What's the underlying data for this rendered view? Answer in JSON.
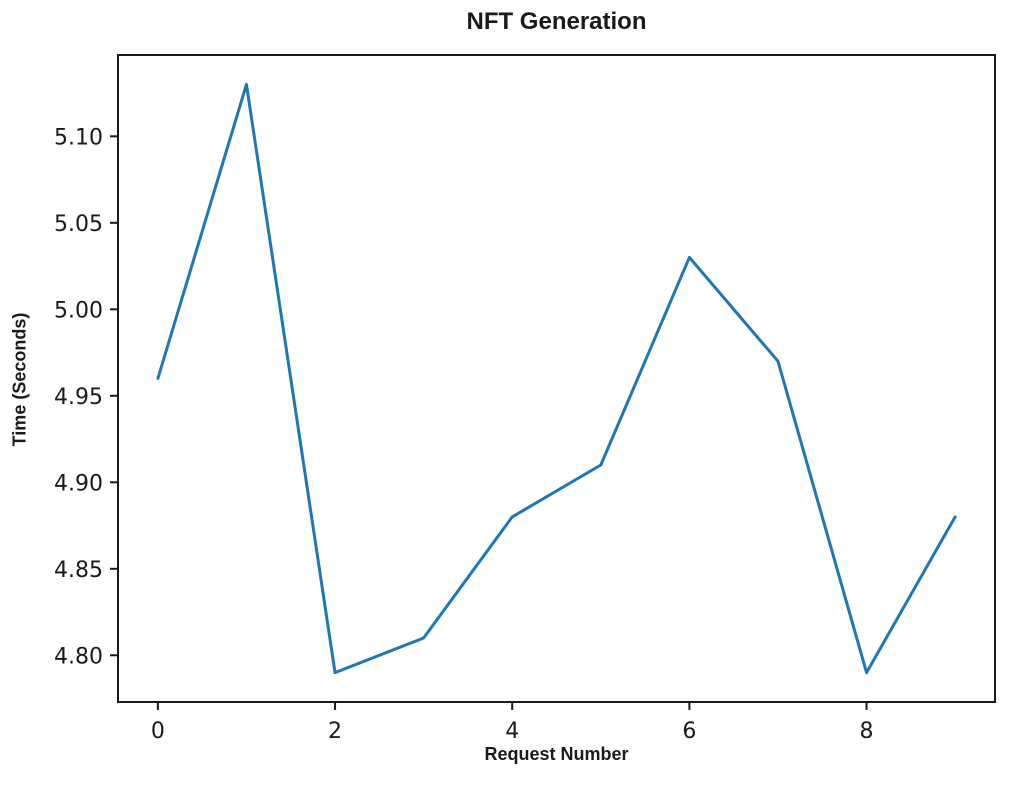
{
  "chart_data": {
    "type": "line",
    "title": "NFT Generation",
    "xlabel": "Request Number",
    "ylabel": "Time (Seconds)",
    "x": [
      0,
      1,
      2,
      3,
      4,
      5,
      6,
      7,
      8,
      9
    ],
    "values": [
      4.96,
      5.13,
      4.79,
      4.81,
      4.88,
      4.91,
      5.03,
      4.97,
      4.79,
      4.88
    ],
    "xlim": [
      -0.45,
      9.45
    ],
    "ylim": [
      4.773,
      5.147
    ],
    "xticks": [
      0,
      2,
      4,
      6,
      8
    ],
    "xtick_labels": [
      "0",
      "2",
      "4",
      "6",
      "8"
    ],
    "yticks": [
      4.8,
      4.85,
      4.9,
      4.95,
      5.0,
      5.05,
      5.1
    ],
    "ytick_labels": [
      "4.80",
      "4.85",
      "4.90",
      "4.95",
      "5.00",
      "5.05",
      "5.10"
    ],
    "grid": false,
    "legend": "none",
    "line_color": "#1f77b4",
    "axis_color": "#1a1a1a",
    "text_color": "#1a1a1a",
    "background_color": "#ffffff"
  }
}
